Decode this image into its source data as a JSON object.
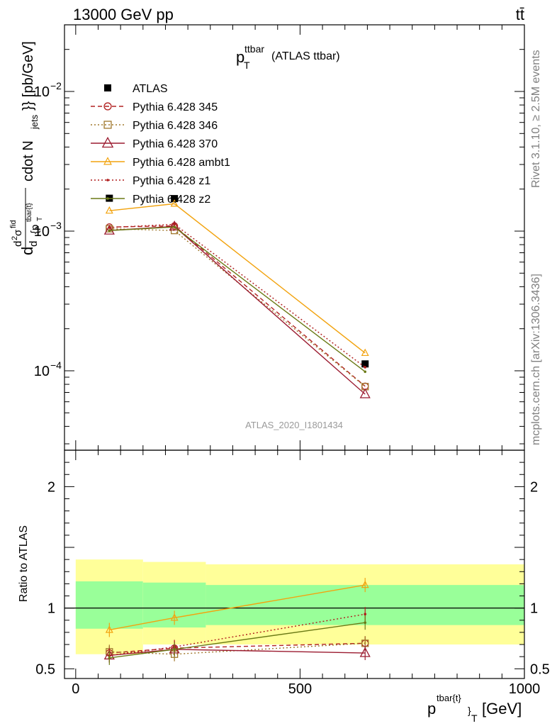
{
  "header": {
    "left": "13000 GeV pp",
    "right": "tt̄"
  },
  "side_labels": {
    "rivet": "Rivet 3.1.10, ≥ 2.5M events",
    "mcplots": "mcplots.cern.ch [arXiv:1306.3436]"
  },
  "watermark": "ATLAS_2020_I1801434",
  "colors": {
    "atlas": "#000000",
    "p345": "#b22222",
    "p346": "#a0782d",
    "p370": "#9b1b30",
    "ambt1": "#f2a30f",
    "z1": "#b01c1c",
    "z2": "#6b7a16",
    "band_inner": "#99ff99",
    "band_outer": "#ffff99"
  },
  "chart_data": [
    {
      "type": "line",
      "title": "p_T^{ttbar} (ATLAS ttbar)",
      "title_main": "p",
      "title_sub": "T",
      "title_sup": "ttbar",
      "title_rest": "(ATLAS ttbar)",
      "ylabel": "d d²σ^{fid} / d²{p_T^{tbar{t}}} cdot N_{jets}}} [pb/GeV]",
      "ylabel_parts": {
        "d1": "d",
        "d2": "d",
        "sigma": "σ",
        "fid": "fid",
        "sup2": "2",
        "d3": "d",
        "brace": "{p",
        "sub_t": "T",
        "sup_tt": "tbar{t}",
        "rest": "cdot N",
        "jets": "jets",
        "tail": "}} [pb/GeV]"
      },
      "yscale": "log",
      "ylim": [
        2.7e-05,
        0.03
      ],
      "xlim": [
        -25,
        1000
      ],
      "yticks": [
        {
          "label_base": "10",
          "label_exp": "−4",
          "value": 0.0001
        },
        {
          "label_base": "10",
          "label_exp": "−3",
          "value": 0.001
        },
        {
          "label_base": "10",
          "label_exp": "−2",
          "value": 0.01
        }
      ],
      "x": [
        75,
        220,
        645
      ],
      "series": [
        {
          "name": "ATLAS",
          "key": "atlas",
          "values": [
            0.00172,
            0.00171,
            0.000112
          ],
          "marker": "square",
          "line": "none"
        },
        {
          "name": "Pythia 6.428 345",
          "key": "p345",
          "values": [
            0.00107,
            0.00109,
            7.75e-05
          ],
          "marker": "circle",
          "line": "dashed"
        },
        {
          "name": "Pythia 6.428 346",
          "key": "p346",
          "values": [
            0.00104,
            0.00101,
            7.7e-05
          ],
          "marker": "square-open",
          "line": "dotted"
        },
        {
          "name": "Pythia 6.428 370",
          "key": "p370",
          "values": [
            0.00101,
            0.00108,
            6.8e-05
          ],
          "marker": "triangle-open",
          "line": "solid"
        },
        {
          "name": "Pythia 6.428 ambt1",
          "key": "ambt1",
          "values": [
            0.0014,
            0.00157,
            0.000134
          ],
          "marker": "triangle-open-small",
          "line": "solid"
        },
        {
          "name": "Pythia 6.428 z1",
          "key": "z1",
          "values": [
            0.00106,
            0.00112,
            0.000106
          ],
          "marker": "dot",
          "line": "dotted"
        },
        {
          "name": "Pythia 6.428 z2",
          "key": "z2",
          "values": [
            0.00101,
            0.00107,
            9.85e-05
          ],
          "marker": "dot",
          "line": "solid"
        }
      ],
      "legend": "top-left"
    },
    {
      "type": "line",
      "ylabel": "Ratio to ATLAS",
      "ylim": [
        0.42,
        2.3
      ],
      "xlim": [
        -25,
        1000
      ],
      "yticks": [
        0.5,
        1,
        2
      ],
      "ytick_labels": [
        "0.5",
        "1",
        "2"
      ],
      "xticks": [
        0,
        500,
        1000
      ],
      "xtick_labels": [
        "0",
        "500",
        "1000"
      ],
      "xlabel": "p_T^{tbar{t}} [GeV]",
      "xlabel_parts": {
        "p": "p",
        "sup": "tbar{t}",
        "brace": "}",
        "sub": "T",
        "unit": "[GeV]"
      },
      "bins": [
        {
          "x0": 0,
          "x1": 150,
          "inner": [
            0.83,
            1.22
          ],
          "outer": [
            0.62,
            1.4
          ]
        },
        {
          "x0": 150,
          "x1": 290,
          "inner": [
            0.84,
            1.21
          ],
          "outer": [
            0.7,
            1.38
          ]
        },
        {
          "x0": 290,
          "x1": 1000,
          "inner": [
            0.86,
            1.19
          ],
          "outer": [
            0.7,
            1.36
          ]
        }
      ],
      "series": [
        {
          "name": "Pythia 6.428 345",
          "key": "p345",
          "values": [
            0.63,
            0.67,
            0.71
          ]
        },
        {
          "name": "Pythia 6.428 346",
          "key": "p346",
          "values": [
            0.64,
            0.62,
            0.71
          ]
        },
        {
          "name": "Pythia 6.428 370",
          "key": "p370",
          "values": [
            0.61,
            0.66,
            0.63
          ]
        },
        {
          "name": "Pythia 6.428 ambt1",
          "key": "ambt1",
          "values": [
            0.82,
            0.92,
            1.19
          ]
        },
        {
          "name": "Pythia 6.428 z1",
          "key": "z1",
          "values": [
            0.61,
            0.68,
            0.95
          ]
        },
        {
          "name": "Pythia 6.428 z2",
          "key": "z2",
          "values": [
            0.59,
            0.66,
            0.88
          ]
        }
      ],
      "reference_line": 1
    }
  ]
}
